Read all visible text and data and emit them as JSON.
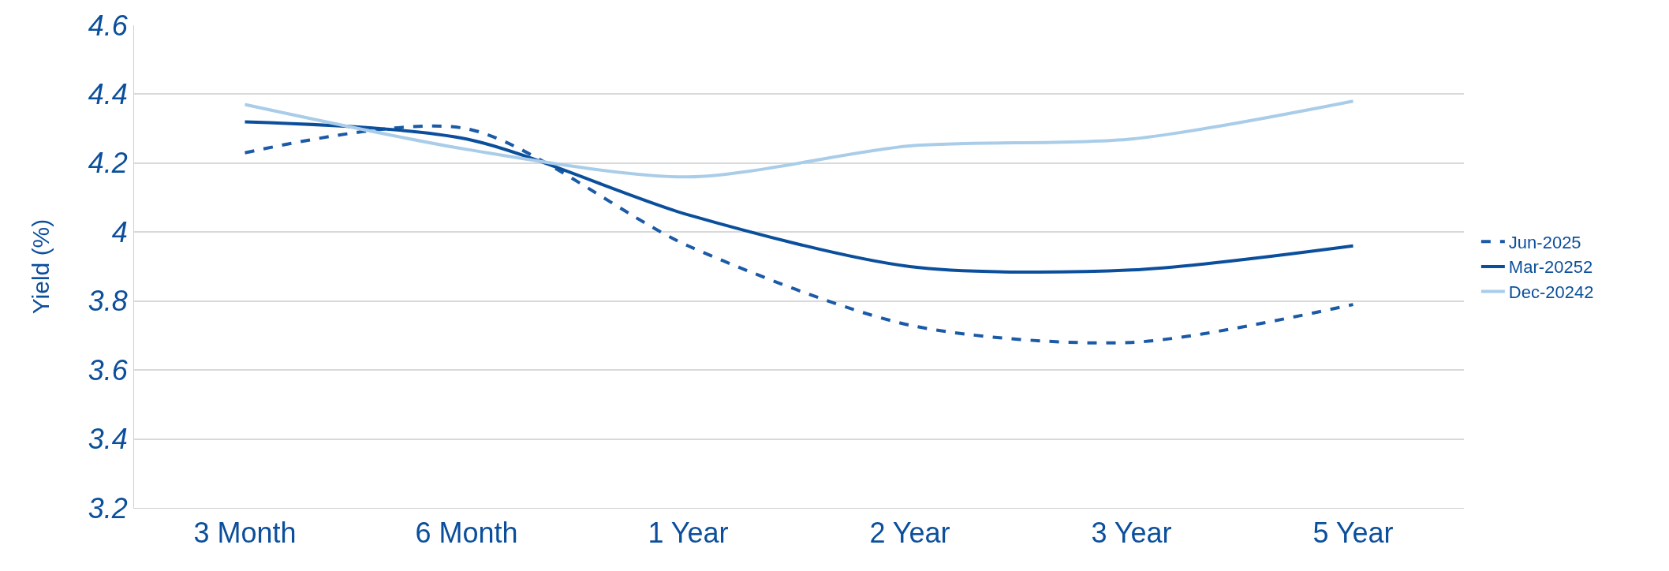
{
  "chart_data": {
    "type": "line",
    "ylabel": "Yield (%)",
    "categories": [
      "3 Month",
      "6 Month",
      "1 Year",
      "2 Year",
      "3 Year",
      "5 Year"
    ],
    "series": [
      {
        "name": "Jun-2025",
        "color": "#1a5aa6",
        "line_style": "dashed",
        "values": [
          4.23,
          4.3,
          3.96,
          3.73,
          3.68,
          3.79
        ]
      },
      {
        "name": "Mar-20252",
        "color": "#0b4f9c",
        "line_style": "solid",
        "values": [
          4.32,
          4.27,
          4.05,
          3.9,
          3.89,
          3.96
        ]
      },
      {
        "name": "Dec-20242",
        "color": "#a9cde9",
        "line_style": "solid",
        "values": [
          4.37,
          4.24,
          4.16,
          4.25,
          4.27,
          4.38
        ]
      }
    ],
    "ylim": [
      3.2,
      4.6
    ],
    "yticks": [
      3.2,
      3.4,
      3.6,
      3.8,
      4,
      4.2,
      4.4,
      4.6
    ],
    "grid": "y",
    "legend": "right",
    "marker": "none"
  }
}
